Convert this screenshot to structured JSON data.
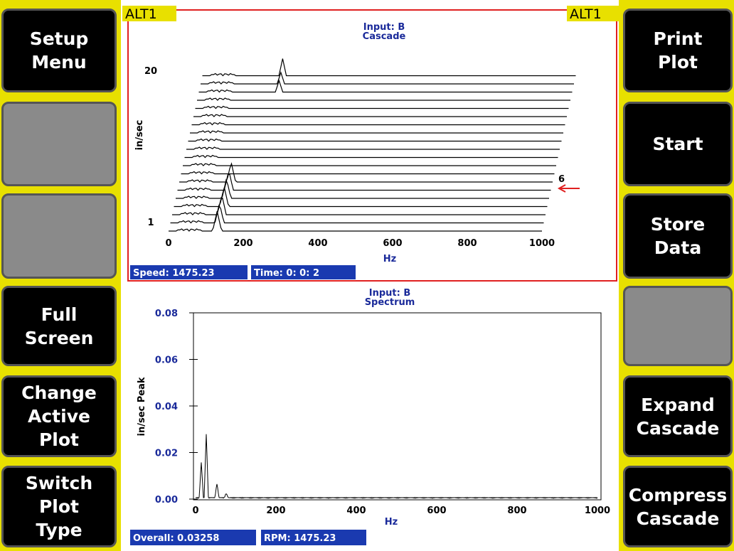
{
  "header": {
    "alt_left": "ALT1",
    "alt_right": "ALT1"
  },
  "left_buttons": [
    {
      "lines": [
        "Setup",
        "Menu"
      ]
    },
    {
      "lines": []
    },
    {
      "lines": []
    },
    {
      "lines": [
        "Full",
        "Screen"
      ]
    },
    {
      "lines": [
        "Change",
        "Active",
        "Plot"
      ]
    },
    {
      "lines": [
        "Switch",
        "Plot",
        "Type"
      ]
    }
  ],
  "right_buttons": [
    {
      "lines": [
        "Print",
        "Plot"
      ]
    },
    {
      "lines": [
        "Start"
      ]
    },
    {
      "lines": [
        "Store",
        "Data"
      ]
    },
    {
      "lines": []
    },
    {
      "lines": [
        "Expand",
        "Cascade"
      ]
    },
    {
      "lines": [
        "Compress",
        "Cascade"
      ]
    }
  ],
  "cascade": {
    "title": "Input: B",
    "subtitle": "Cascade",
    "y_label": "in/sec",
    "x_label": "Hz",
    "x_ticks": [
      "0",
      "200",
      "400",
      "600",
      "800",
      "1000"
    ],
    "y_first": "1",
    "y_last": "20",
    "marker": "6",
    "speed": "Speed: 1475.23",
    "time": "Time:  0: 0: 2"
  },
  "spectrum": {
    "title": "Input: B",
    "subtitle": "Spectrum",
    "y_label": "in/sec  Peak",
    "x_label": "Hz",
    "x_ticks": [
      "0",
      "200",
      "400",
      "600",
      "800",
      "1000"
    ],
    "y_ticks": [
      "0.00",
      "0.02",
      "0.04",
      "0.06",
      "0.08"
    ],
    "overall": "Overall: 0.03258",
    "rpm": "RPM: 1475.23"
  }
}
